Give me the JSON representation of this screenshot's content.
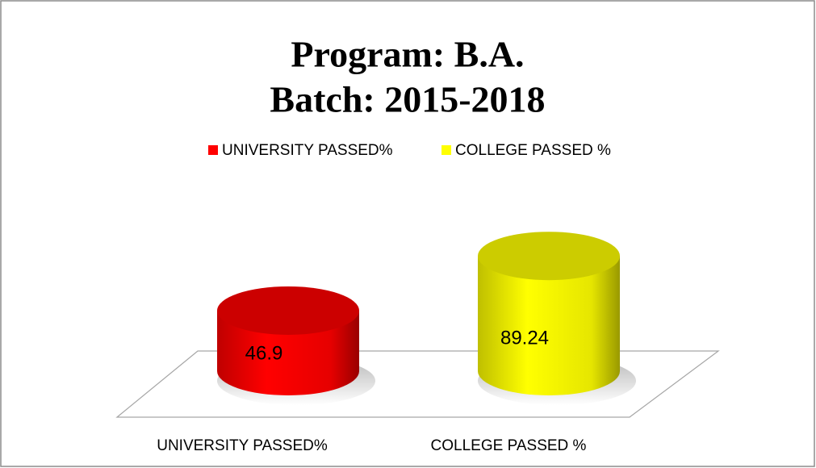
{
  "chart_data": {
    "type": "cylinder-bar",
    "title": "Program: B.A.",
    "subtitle": "Batch: 2015-2018",
    "categories": [
      "UNIVERSITY PASSED%",
      "COLLEGE PASSED %"
    ],
    "values": [
      46.9,
      89.24
    ],
    "colors": [
      "#ff0000",
      "#ffff00"
    ],
    "ylim": [
      0,
      100
    ],
    "legend": "top"
  }
}
